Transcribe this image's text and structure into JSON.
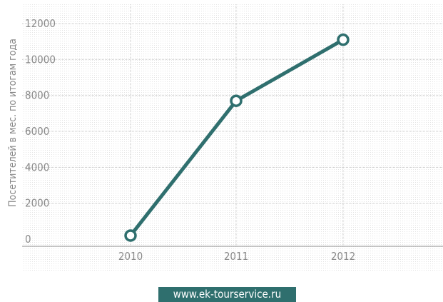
{
  "chart_data": {
    "type": "line",
    "ylabel": "Посетителей в мес. по итогам года",
    "xlabel": "",
    "categories": [
      "2010",
      "2011",
      "2012"
    ],
    "series": [
      {
        "values": [
          200,
          7700,
          11100
        ],
        "color": "#2f6f6e"
      }
    ],
    "ylim": [
      -100,
      12100
    ],
    "yticks": [
      0,
      2000,
      4000,
      6000,
      8000,
      10000,
      12000
    ],
    "grid": true
  },
  "footer": {
    "text": "www.ek-tourservice.ru"
  }
}
